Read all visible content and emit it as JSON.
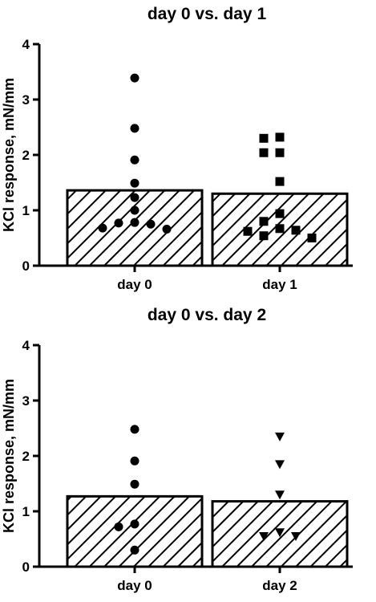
{
  "chart_data": [
    {
      "type": "bar",
      "title": "day 0 vs. day 1",
      "ylabel": "KCl response, mN/mm",
      "xlabel": "",
      "ylim": [
        0,
        4
      ],
      "yticks": [
        0,
        1,
        2,
        3,
        4
      ],
      "categories": [
        "day 0",
        "day 1"
      ],
      "values": [
        1.36,
        1.3
      ],
      "bar_pattern": "diagonal-hatch",
      "points": [
        {
          "category": "day 0",
          "marker": "circle",
          "values": [
            3.39,
            2.48,
            1.91,
            1.49,
            1.23,
            1.0,
            0.78,
            0.77,
            0.75,
            0.68,
            0.66
          ]
        },
        {
          "category": "day 1",
          "marker": "square",
          "values": [
            2.32,
            2.3,
            2.04,
            2.04,
            1.52,
            0.94,
            0.8,
            0.67,
            0.64,
            0.62,
            0.54,
            0.5
          ]
        }
      ]
    },
    {
      "type": "bar",
      "title": "day 0 vs. day 2",
      "ylabel": "KCl response, mN/mm",
      "xlabel": "",
      "ylim": [
        0,
        4
      ],
      "yticks": [
        0,
        1,
        2,
        3,
        4
      ],
      "categories": [
        "day 0",
        "day 2"
      ],
      "values": [
        1.27,
        1.18
      ],
      "bar_pattern": "diagonal-hatch",
      "points": [
        {
          "category": "day 0",
          "marker": "circle",
          "values": [
            2.48,
            1.91,
            1.49,
            0.77,
            0.72,
            0.3
          ]
        },
        {
          "category": "day 2",
          "marker": "triangle-down",
          "values": [
            2.35,
            1.85,
            1.3,
            0.62,
            0.55,
            0.55
          ]
        }
      ]
    }
  ]
}
